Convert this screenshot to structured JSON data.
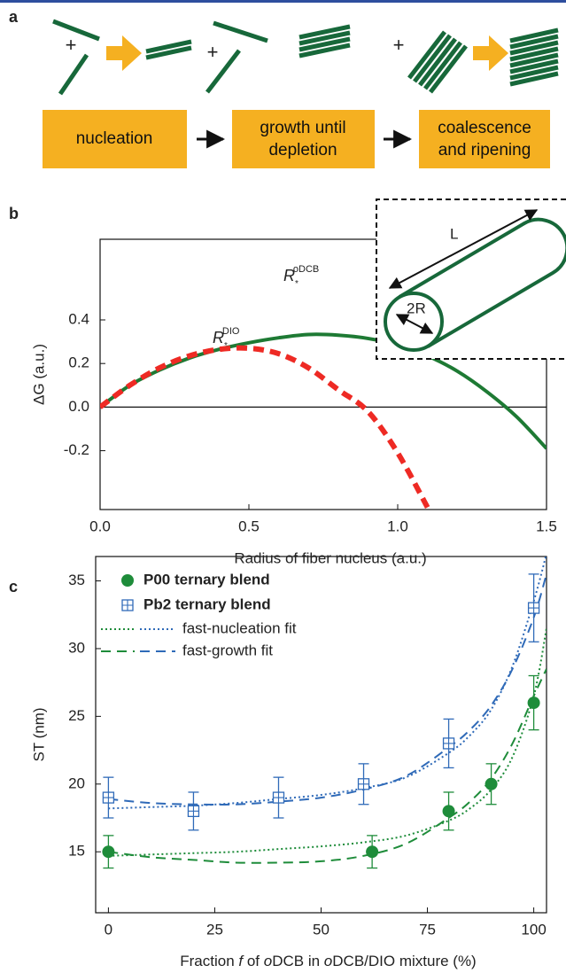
{
  "panel_labels": [
    "a",
    "b",
    "c"
  ],
  "diagram": {
    "plus_signs": [
      "+",
      "+",
      "+"
    ],
    "boxes": [
      [
        "nucleation"
      ],
      [
        "growth until",
        "depletion"
      ],
      [
        "coalescence",
        "and ripening"
      ]
    ]
  },
  "chart_data": [
    {
      "type": "line",
      "xlabel": "Radius of fiber nucleus (a.u.)",
      "ylabel": "ΔG (a.u.)",
      "x": [
        0,
        0.1,
        0.2,
        0.3,
        0.4,
        0.5,
        0.6,
        0.7,
        0.8,
        0.9,
        1.0,
        1.1,
        1.2,
        1.3,
        1.4,
        1.5
      ],
      "series": [
        {
          "color": "#1e7a34",
          "style": "solid",
          "values": [
            0,
            0.1,
            0.17,
            0.225,
            0.265,
            0.295,
            0.318,
            0.333,
            0.33,
            0.315,
            0.285,
            0.235,
            0.165,
            0.07,
            -0.045,
            -0.19
          ]
        },
        {
          "color": "#ee2a24",
          "style": "dashed",
          "values": [
            0,
            0.1,
            0.18,
            0.235,
            0.265,
            0.27,
            0.245,
            0.18,
            0.08,
            -0.02,
            -0.21,
            -0.46,
            null,
            null,
            null,
            null
          ]
        }
      ],
      "xlim": [
        0,
        1.5
      ],
      "ylim": [
        -0.47,
        0.77
      ],
      "xticks": [
        {
          "value": 0,
          "label": "0.0"
        },
        0.5,
        {
          "value": 1,
          "label": "1.0"
        },
        1.5
      ],
      "yticks": [
        -0.2,
        {
          "value": 0,
          "label": "0.0"
        },
        0.2,
        0.4
      ],
      "zero_line": true,
      "annotations": [
        {
          "text": "R",
          "sub": "*",
          "sup": "oDCB"
        },
        {
          "text": "R",
          "sub": "*",
          "sup": "DIO"
        }
      ],
      "inset_labels": [
        "L",
        "2R"
      ]
    },
    {
      "type": "scatter",
      "xlabel": [
        "Fraction ",
        "f",
        " of ",
        "o",
        "DCB in ",
        "o",
        "DCB/DIO mixture (%)"
      ],
      "ylabel": "ST (nm)",
      "xlim": [
        -3,
        103
      ],
      "ylim": [
        10.5,
        36.8
      ],
      "xticks": [
        0,
        25,
        50,
        75,
        100
      ],
      "yticks": [
        15,
        20,
        25,
        30,
        35
      ],
      "series": [
        {
          "name": "P00 ternary blend",
          "color": "#1e8c3a",
          "marker": "circle",
          "x": [
            0,
            62,
            80,
            90,
            100
          ],
          "values": [
            15,
            15,
            18,
            20,
            26
          ],
          "errors": [
            1.2,
            1.2,
            1.4,
            1.5,
            2
          ]
        },
        {
          "name": "Pb2 ternary blend",
          "color": "#2f6ab8",
          "marker": "square",
          "x": [
            0,
            20,
            40,
            60,
            80,
            100
          ],
          "values": [
            19,
            18,
            19,
            20,
            23,
            33
          ],
          "errors": [
            1.5,
            1.4,
            1.5,
            1.5,
            1.8,
            2.5
          ]
        }
      ],
      "fit_x": [
        0,
        10,
        20,
        30,
        40,
        50,
        60,
        70,
        80,
        85,
        90,
        95,
        100,
        103
      ],
      "fits": [
        {
          "name": "fast-nucleation fit",
          "dash": "dotted",
          "curves": [
            {
              "color": "#1e8c3a",
              "values": [
                14.7,
                14.8,
                14.9,
                15.0,
                15.2,
                15.4,
                15.7,
                16.2,
                17.3,
                18.2,
                19.6,
                22,
                26.5,
                31.5
              ]
            },
            {
              "color": "#2f6ab8",
              "values": [
                18.2,
                18.3,
                18.4,
                18.6,
                18.9,
                19.2,
                19.7,
                20.5,
                22.3,
                23.6,
                25.5,
                28.7,
                33.5,
                37
              ]
            }
          ]
        },
        {
          "name": "fast-growth fit",
          "dash": "dashed",
          "curves": [
            {
              "color": "#1e8c3a",
              "values": [
                15,
                14.6,
                14.4,
                14.2,
                14.2,
                14.3,
                14.7,
                15.6,
                17.5,
                18.7,
                20.4,
                23,
                26.5,
                28.5
              ]
            },
            {
              "color": "#2f6ab8",
              "values": [
                18.9,
                18.6,
                18.5,
                18.5,
                18.7,
                19,
                19.6,
                20.6,
                22.7,
                24,
                25.8,
                28.5,
                32.3,
                35.5
              ]
            }
          ]
        }
      ]
    }
  ]
}
